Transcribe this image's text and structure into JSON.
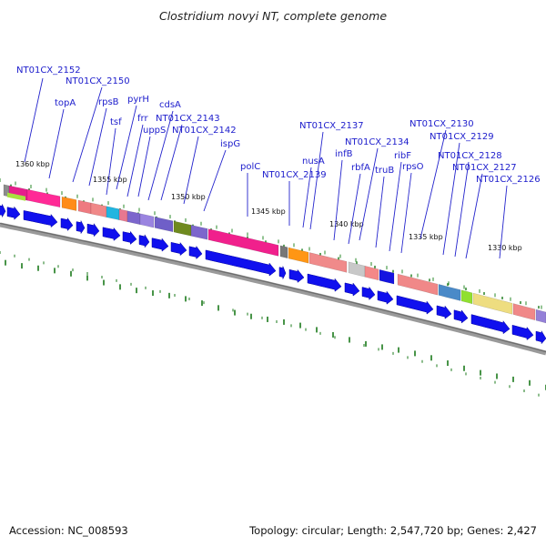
{
  "title": "Clostridium novyi NT, complete genome",
  "footer": {
    "accession": "Accession: NC_008593",
    "stats": "Topology: circular; Length: 2,547,720 bp; Genes: 2,427"
  },
  "ticks": [
    "1360 kbp",
    "1355 kbp",
    "1350 kbp",
    "1345 kbp",
    "1340 kbp",
    "1335 kbp",
    "1330 kbp"
  ],
  "gene_labels": [
    "NT01CX_2152",
    "NT01CX_2150",
    "topA",
    "rpsB",
    "pyrH",
    "tsf",
    "frr",
    "cdsA",
    "uppS",
    "NT01CX_2143",
    "NT01CX_2142",
    "ispG",
    "polC",
    "NT01CX_2139",
    "NT01CX_2137",
    "nusA",
    "infB",
    "NT01CX_2134",
    "rbfA",
    "truB",
    "ribF",
    "rpsO",
    "NT01CX_2130",
    "NT01CX_2129",
    "NT01CX_2128",
    "NT01CX_2127",
    "NT01CX_2126"
  ],
  "colors": {
    "gene_arrow": "#1010ee",
    "gene_label": "#1c1ccc",
    "callout": "#2222cc",
    "axis": "#888888",
    "gc_marks": "#1a7a1a"
  }
}
